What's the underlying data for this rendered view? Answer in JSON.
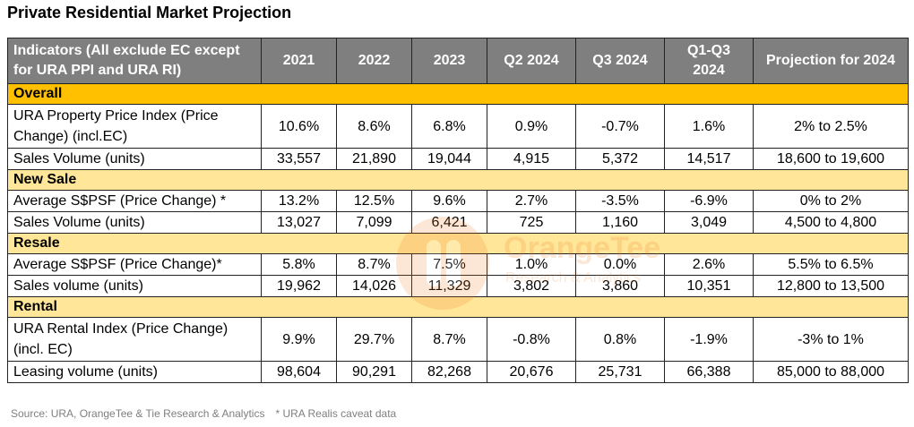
{
  "title": "Private Residential Market Projection",
  "headers": [
    "Indicators (All exclude EC except for URA PPI and URA RI)",
    "2021",
    "2022",
    "2023",
    "Q2 2024",
    "Q3 2024",
    "Q1-Q3 2024",
    "Projection for 2024"
  ],
  "sections": {
    "overall": {
      "name": "Overall",
      "rows": [
        {
          "label": "URA Property Price Index (Price Change) (incl.EC)",
          "values": [
            "10.6%",
            "8.6%",
            "6.8%",
            "0.9%",
            "-0.7%",
            "1.6%",
            "2% to 2.5%"
          ]
        },
        {
          "label": "Sales Volume (units)",
          "values": [
            "33,557",
            "21,890",
            "19,044",
            "4,915",
            "5,372",
            "14,517",
            "18,600 to 19,600"
          ]
        }
      ]
    },
    "new_sale": {
      "name": "New Sale",
      "rows": [
        {
          "label": "Average S$PSF (Price Change) *",
          "values": [
            "13.2%",
            "12.5%",
            "9.6%",
            "2.7%",
            "-3.5%",
            "-6.9%",
            "0% to 2%"
          ]
        },
        {
          "label": "Sales Volume (units)",
          "values": [
            "13,027",
            "7,099",
            "6,421",
            "725",
            "1,160",
            "3,049",
            "4,500 to 4,800"
          ]
        }
      ]
    },
    "resale": {
      "name": "Resale",
      "rows": [
        {
          "label": "Average S$PSF (Price Change)*",
          "values": [
            "5.8%",
            "8.7%",
            "7.5%",
            "1.0%",
            "0.0%",
            "2.6%",
            "5.5% to 6.5%"
          ]
        },
        {
          "label": "Sales volume (units)",
          "values": [
            "19,962",
            "14,026",
            "11,329",
            "3,802",
            "3,860",
            "10,351",
            "12,800 to 13,500"
          ]
        }
      ]
    },
    "rental": {
      "name": "Rental",
      "rows": [
        {
          "label": "URA Rental Index (Price Change) (incl. EC)",
          "values": [
            "9.9%",
            "29.7%",
            "8.7%",
            "-0.8%",
            "0.8%",
            "-1.9%",
            "-3% to 1%"
          ]
        },
        {
          "label": "Leasing volume (units)",
          "values": [
            "98,604",
            "90,291",
            "82,268",
            "20,676",
            "25,731",
            "66,388",
            "85,000 to 88,000"
          ]
        }
      ]
    }
  },
  "footnote": {
    "source": "Source: URA, OrangeTee & Tie Research & Analytics",
    "caveat": "* URA Realis caveat data"
  },
  "watermark": {
    "brand": "OrangeTee",
    "sub": "Research & Analytics"
  },
  "colors": {
    "header_bg": "#7f7f7f",
    "overall_bg": "#ffc000",
    "section_bg": "#ffe699",
    "brand": "#f07b1c"
  }
}
